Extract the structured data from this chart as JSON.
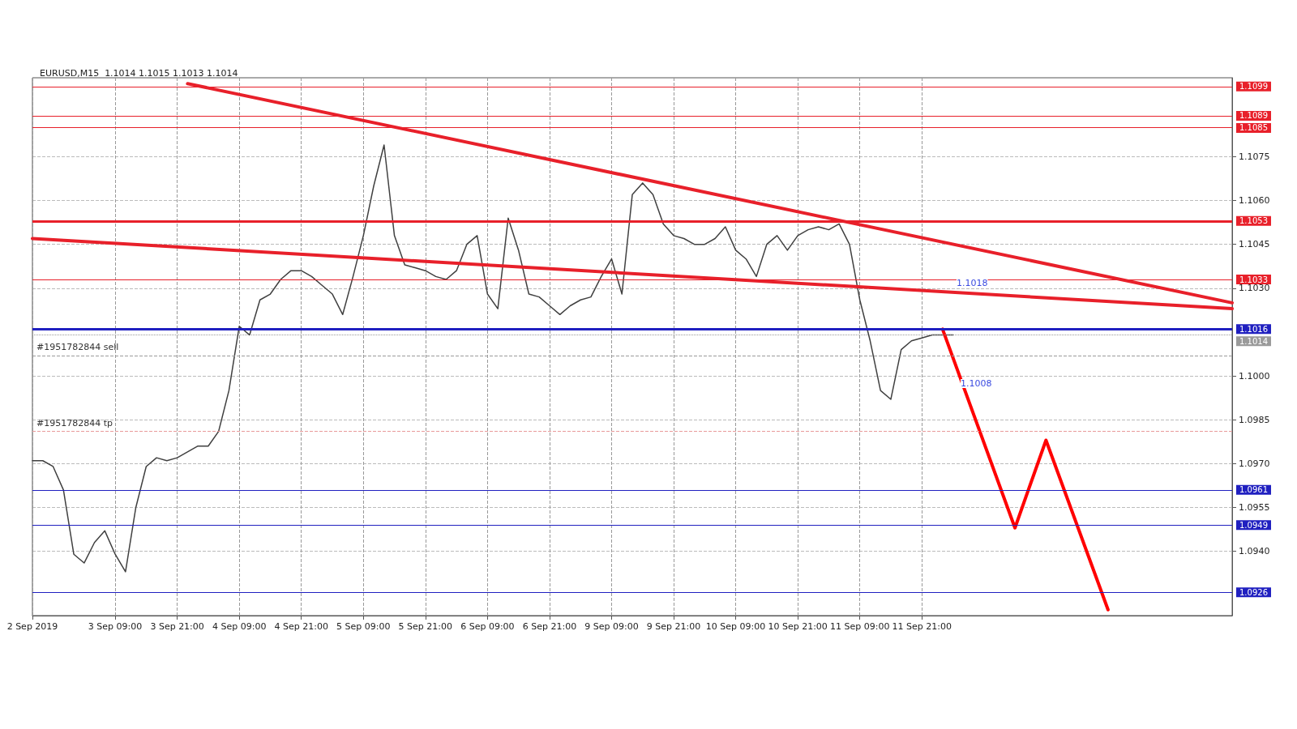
{
  "chart_data": {
    "type": "line",
    "title": "EURUSD,M15  1.1014 1.1015 1.1013 1.1014",
    "categories": [
      "2 Sep 2019",
      null,
      null,
      null,
      null,
      null,
      null,
      null,
      "3 Sep 09:00",
      null,
      null,
      null,
      null,
      null,
      "3 Sep 21:00",
      null,
      null,
      null,
      null,
      null,
      "4 Sep 09:00",
      null,
      null,
      null,
      null,
      null,
      "4 Sep 21:00",
      null,
      null,
      null,
      null,
      null,
      "5 Sep 09:00",
      null,
      null,
      null,
      null,
      null,
      "5 Sep 21:00",
      null,
      null,
      null,
      null,
      null,
      "6 Sep 09:00",
      null,
      null,
      null,
      null,
      null,
      "6 Sep 21:00",
      null,
      null,
      null,
      null,
      null,
      "9 Sep 09:00",
      null,
      null,
      null,
      null,
      null,
      "9 Sep 21:00",
      null,
      null,
      null,
      null,
      null,
      "10 Sep 09:00",
      null,
      null,
      null,
      null,
      null,
      "10 Sep 21:00",
      null,
      null,
      null,
      null,
      null,
      "11 Sep 09:00",
      null,
      null,
      null,
      null,
      null,
      "11 Sep 21:00",
      null,
      null,
      null,
      null,
      null,
      null,
      null,
      null,
      null,
      null,
      null,
      null,
      null,
      null,
      null,
      null,
      null,
      null,
      null,
      null,
      null,
      null,
      null,
      null,
      null,
      null,
      null,
      null,
      null,
      null
    ],
    "series": [
      {
        "color": "#404040",
        "line_style": "solid",
        "values": [
          1.0971,
          1.0971,
          1.0969,
          1.0961,
          1.0939,
          1.0936,
          1.0943,
          1.0947,
          1.0939,
          1.0933,
          1.0955,
          1.0969,
          1.0972,
          1.0971,
          1.0972,
          1.0974,
          1.0976,
          1.0976,
          1.0981,
          1.0995,
          1.1017,
          1.1014,
          1.1026,
          1.1028,
          1.1033,
          1.1036,
          1.1036,
          1.1034,
          1.1031,
          1.1028,
          1.1021,
          1.1034,
          1.1048,
          1.1065,
          1.1079,
          1.1048,
          1.1038,
          1.1037,
          1.1036,
          1.1034,
          1.1033,
          1.1036,
          1.1045,
          1.1048,
          1.1028,
          1.1023,
          1.1054,
          1.1043,
          1.1028,
          1.1027,
          1.1024,
          1.1021,
          1.1024,
          1.1026,
          1.1027,
          1.1034,
          1.104,
          1.1028,
          1.1062,
          1.1066,
          1.1062,
          1.1052,
          1.1048,
          1.1047,
          1.1045,
          1.1045,
          1.1047,
          1.1051,
          1.1043,
          1.104,
          1.1034,
          1.1045,
          1.1048,
          1.1043,
          1.1048,
          1.105,
          1.1051,
          1.105,
          1.1052,
          1.1045,
          1.1026,
          1.1012,
          1.0995,
          1.0992,
          1.1009,
          1.1012,
          1.1013,
          1.1014,
          1.1014,
          1.1014,
          null,
          null,
          null,
          null,
          null,
          null,
          null,
          null,
          null,
          null,
          null,
          null,
          null,
          null,
          null,
          null,
          null,
          null,
          null,
          null,
          null,
          null,
          null,
          null,
          null,
          null,
          null
        ]
      },
      {
        "color": "#e8202a",
        "line_style": "solid",
        "values": [
          null,
          null,
          null,
          null,
          null,
          null,
          null,
          null,
          null,
          null,
          null,
          null,
          null,
          null,
          null,
          1.11,
          null,
          null,
          null,
          null,
          null,
          null,
          null,
          null,
          null,
          null,
          null,
          null,
          null,
          null,
          null,
          null,
          null,
          null,
          null,
          null,
          null,
          null,
          null,
          null,
          null,
          null,
          null,
          null,
          null,
          null,
          null,
          null,
          null,
          null,
          null,
          null,
          null,
          null,
          null,
          null,
          null,
          null,
          null,
          null,
          null,
          null,
          null,
          null,
          null,
          null,
          null,
          null,
          null,
          null,
          null,
          null,
          null,
          null,
          null,
          null,
          null,
          null,
          null,
          null,
          null,
          null,
          null,
          null,
          null,
          null,
          null,
          null,
          null,
          null,
          null,
          null,
          null,
          null,
          null,
          null,
          null,
          null,
          null,
          null,
          null,
          null,
          null,
          null,
          null,
          null,
          null,
          null,
          null,
          null,
          null,
          null,
          null,
          null,
          null,
          null,
          1.1025
        ]
      },
      {
        "color": "#e8202a",
        "line_style": "solid",
        "values": [
          1.1047,
          null,
          null,
          null,
          null,
          null,
          null,
          null,
          null,
          null,
          null,
          null,
          null,
          null,
          null,
          null,
          null,
          null,
          null,
          null,
          null,
          null,
          null,
          null,
          null,
          null,
          null,
          null,
          null,
          null,
          null,
          null,
          null,
          null,
          null,
          null,
          null,
          null,
          null,
          null,
          null,
          null,
          null,
          null,
          null,
          null,
          null,
          null,
          null,
          null,
          null,
          null,
          null,
          null,
          null,
          null,
          null,
          null,
          null,
          null,
          null,
          null,
          null,
          null,
          null,
          null,
          null,
          null,
          null,
          null,
          null,
          null,
          null,
          null,
          null,
          null,
          null,
          null,
          null,
          null,
          null,
          null,
          null,
          null,
          null,
          null,
          null,
          null,
          null,
          null,
          null,
          null,
          null,
          null,
          null,
          null,
          null,
          null,
          null,
          null,
          null,
          null,
          null,
          null,
          null,
          null,
          null,
          null,
          null,
          null,
          null,
          null,
          null,
          null,
          null,
          null,
          1.1023
        ]
      },
      {
        "color": "#ff0000",
        "line_style": "solid",
        "values": [
          null,
          null,
          null,
          null,
          null,
          null,
          null,
          null,
          null,
          null,
          null,
          null,
          null,
          null,
          null,
          null,
          null,
          null,
          null,
          null,
          null,
          null,
          null,
          null,
          null,
          null,
          null,
          null,
          null,
          null,
          null,
          null,
          null,
          null,
          null,
          null,
          null,
          null,
          null,
          null,
          null,
          null,
          null,
          null,
          null,
          null,
          null,
          null,
          null,
          null,
          null,
          null,
          null,
          null,
          null,
          null,
          null,
          null,
          null,
          null,
          null,
          null,
          null,
          null,
          null,
          null,
          null,
          null,
          null,
          null,
          null,
          null,
          null,
          null,
          null,
          null,
          null,
          null,
          null,
          null,
          null,
          null,
          null,
          null,
          null,
          null,
          null,
          null,
          1.1016,
          null,
          null,
          null,
          null,
          null,
          null,
          1.0948,
          null,
          null,
          1.0978,
          null,
          null,
          null,
          null,
          null,
          1.092,
          null,
          null,
          null,
          null,
          null,
          null,
          null,
          null,
          null,
          null,
          null,
          null
        ]
      }
    ],
    "ylim": [
      1.0918,
      1.1102
    ],
    "yticks": [
      {
        "value": 1.094,
        "label": "1.0940"
      },
      1.0955,
      {
        "value": 1.097,
        "label": "1.0970"
      },
      1.0985,
      {
        "value": 1.1,
        "label": "1.1000"
      },
      {
        "value": 1.103,
        "label": "1.1030"
      },
      1.1045,
      {
        "value": 1.106,
        "label": "1.1060"
      },
      1.1075
    ],
    "grid": true,
    "marker": "none",
    "ref_lines": [
      {
        "axis": "y",
        "value": 1.1099,
        "label": "1.1099",
        "color": "#e8202a",
        "line_style": "solid"
      },
      {
        "axis": "y",
        "value": 1.1089,
        "label": "1.1089",
        "color": "#e8202a",
        "line_style": "solid"
      },
      {
        "axis": "y",
        "value": 1.1085,
        "label": "1.1085",
        "color": "#e8202a",
        "line_style": "solid"
      },
      {
        "axis": "y",
        "value": 1.1053,
        "label": "1.1053",
        "color": "#e8202a",
        "line_style": "solid"
      },
      {
        "axis": "y",
        "value": 1.1033,
        "label": "1.1033",
        "color": "#e8202a",
        "line_style": "solid"
      },
      {
        "axis": "y",
        "value": 1.1016,
        "label": "1.1016",
        "color": "#2020c0",
        "line_style": "solid"
      },
      {
        "axis": "y",
        "value": 1.1014,
        "label": "1.1014",
        "color": "#9a9a9a",
        "line_style": "dotted"
      },
      {
        "axis": "y",
        "value": 1.1007,
        "label": "#1951782844 sell",
        "color": "#9a9a9a",
        "line_style": "dashed"
      },
      {
        "axis": "y",
        "value": 1.0981,
        "label": "#1951782844 tp",
        "color": "#e89a9a",
        "line_style": "dashed"
      },
      {
        "axis": "y",
        "value": 1.0961,
        "label": "1.0961",
        "color": "#2020c0",
        "line_style": "solid"
      },
      {
        "axis": "y",
        "value": 1.0949,
        "label": "1.0949",
        "color": "#2020c0",
        "line_style": "solid"
      },
      {
        "axis": "y",
        "value": 1.0926,
        "label": "1.0926",
        "color": "#2020c0",
        "line_style": "solid"
      }
    ],
    "annotations": [
      "1.1018",
      "1.1008"
    ]
  }
}
